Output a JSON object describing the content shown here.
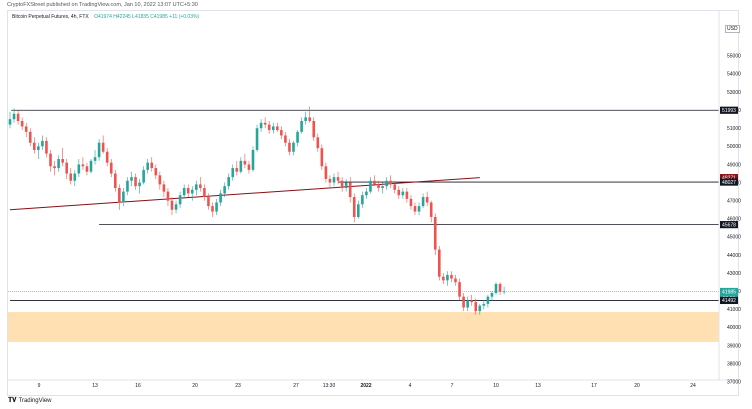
{
  "publisher": "CryptoFXStreet published on TradingView.com, Jan 10, 2022 13:07 UTC+5:30",
  "legend": {
    "symbol": "Bitcoin Perpetual Futures, 4h, FTX",
    "ohlc": "O41974 H42245 L41835 C41985 +11 (+0.03%)"
  },
  "currency": "USD",
  "footer_brand": "TradingView",
  "colors": {
    "up": "#26a69a",
    "down": "#ef5350",
    "ma_line": "#880e14",
    "line_black": "#131722",
    "zone_fill": "#ffe0b2"
  },
  "chart_data": {
    "type": "candlestick",
    "timeframe": "4h",
    "ylim": [
      36800,
      56700
    ],
    "yticks": [
      "55000",
      "54000",
      "53000",
      "52000",
      "51000",
      "50000",
      "49000",
      "48000",
      "47000",
      "46000",
      "45000",
      "44000",
      "43000",
      "42000",
      "41000",
      "40000",
      "39000",
      "38000",
      "37000"
    ],
    "xticks": [
      "9",
      "13",
      "16",
      "20",
      "23",
      "27",
      "13:30",
      "2022",
      "4",
      "7",
      "10",
      "13",
      "17",
      "20",
      "24"
    ],
    "price_tags": [
      {
        "label": "51993",
        "value": 51993,
        "color": "#131722"
      },
      {
        "label": "48271",
        "value": 48271,
        "color": "#880e14"
      },
      {
        "label": "48027",
        "value": 48027,
        "color": "#131722"
      },
      {
        "label": "45678",
        "value": 45678,
        "color": "#131722"
      },
      {
        "label": "41985",
        "value": 41985,
        "color": "#26a69a"
      },
      {
        "label": "22:53",
        "value": 41620,
        "color": "#26a69a"
      },
      {
        "label": "41492",
        "value": 41492,
        "color": "#131722"
      }
    ],
    "levels": [
      {
        "value": 51993,
        "start": 0.3
      },
      {
        "value": 48027,
        "start": 81
      },
      {
        "value": 45678,
        "start": 22
      },
      {
        "value": 41492,
        "start": 0
      }
    ],
    "zone": {
      "from": 39200,
      "to": 40850
    },
    "trend_line": {
      "x0": 0,
      "y0": 46500,
      "x1": 116,
      "y1": 48271
    },
    "price_line": 41985,
    "candles": [
      [
        51200,
        51900,
        51000,
        51500
      ],
      [
        51500,
        52100,
        51300,
        51800
      ],
      [
        51800,
        52000,
        51200,
        51400
      ],
      [
        51400,
        51600,
        50900,
        51100
      ],
      [
        51100,
        51300,
        50500,
        50800
      ],
      [
        50800,
        51000,
        50000,
        50200
      ],
      [
        50200,
        50500,
        49600,
        49800
      ],
      [
        49800,
        50200,
        49300,
        50000
      ],
      [
        50000,
        50600,
        49800,
        50300
      ],
      [
        50300,
        50500,
        49400,
        49600
      ],
      [
        49600,
        49800,
        48600,
        48900
      ],
      [
        48900,
        49200,
        48400,
        48800
      ],
      [
        48800,
        49500,
        48600,
        49300
      ],
      [
        49300,
        49900,
        48900,
        49100
      ],
      [
        49100,
        49300,
        48200,
        48500
      ],
      [
        48500,
        48800,
        47900,
        48100
      ],
      [
        48100,
        48700,
        47800,
        48500
      ],
      [
        48500,
        49300,
        48300,
        49000
      ],
      [
        49000,
        49400,
        48700,
        48900
      ],
      [
        48900,
        49100,
        48400,
        48600
      ],
      [
        48600,
        49300,
        48500,
        49200
      ],
      [
        49200,
        49800,
        49000,
        49400
      ],
      [
        49400,
        50400,
        49200,
        50200
      ],
      [
        50200,
        50600,
        49600,
        49700
      ],
      [
        49700,
        49900,
        48900,
        49100
      ],
      [
        49100,
        49300,
        48300,
        48500
      ],
      [
        48500,
        48700,
        47500,
        47700
      ],
      [
        47700,
        47900,
        46500,
        46900
      ],
      [
        46900,
        47700,
        46700,
        47500
      ],
      [
        47500,
        48300,
        47300,
        48100
      ],
      [
        48100,
        48600,
        47800,
        48300
      ],
      [
        48300,
        48500,
        47600,
        47800
      ],
      [
        47800,
        48200,
        47400,
        48000
      ],
      [
        48000,
        48900,
        47900,
        48700
      ],
      [
        48700,
        49300,
        48500,
        49100
      ],
      [
        49100,
        49400,
        48600,
        48800
      ],
      [
        48800,
        49000,
        48200,
        48400
      ],
      [
        48400,
        48600,
        47600,
        47900
      ],
      [
        47900,
        48100,
        47200,
        47500
      ],
      [
        47500,
        47700,
        46700,
        47000
      ],
      [
        47000,
        47200,
        46200,
        46500
      ],
      [
        46500,
        47000,
        46300,
        46800
      ],
      [
        46800,
        47500,
        46600,
        47300
      ],
      [
        47300,
        47900,
        47100,
        47700
      ],
      [
        47700,
        47900,
        47200,
        47400
      ],
      [
        47400,
        47800,
        47000,
        47600
      ],
      [
        47600,
        48100,
        47300,
        47900
      ],
      [
        47900,
        48300,
        47500,
        47700
      ],
      [
        47700,
        47900,
        47000,
        47200
      ],
      [
        47200,
        47400,
        46500,
        46700
      ],
      [
        46700,
        46900,
        46100,
        46400
      ],
      [
        46400,
        47100,
        46200,
        46900
      ],
      [
        46900,
        47600,
        46700,
        47400
      ],
      [
        47400,
        48000,
        47200,
        47800
      ],
      [
        47800,
        48500,
        47600,
        48300
      ],
      [
        48300,
        49000,
        48100,
        48800
      ],
      [
        48800,
        49200,
        48400,
        48600
      ],
      [
        48600,
        49400,
        48500,
        49200
      ],
      [
        49200,
        49600,
        48800,
        49000
      ],
      [
        49000,
        49200,
        48500,
        48700
      ],
      [
        48700,
        50000,
        48600,
        49800
      ],
      [
        49800,
        51200,
        49700,
        51000
      ],
      [
        51000,
        51500,
        50800,
        51300
      ],
      [
        51300,
        51600,
        51000,
        51200
      ],
      [
        51200,
        51400,
        50700,
        50900
      ],
      [
        50900,
        51300,
        50700,
        51100
      ],
      [
        51100,
        51300,
        50800,
        50900
      ],
      [
        50900,
        51100,
        50400,
        50600
      ],
      [
        50600,
        50800,
        50000,
        50200
      ],
      [
        50200,
        50400,
        49500,
        49700
      ],
      [
        49700,
        50300,
        49500,
        50200
      ],
      [
        50200,
        50900,
        50000,
        50800
      ],
      [
        50800,
        51600,
        50700,
        51400
      ],
      [
        51400,
        51900,
        51200,
        51600
      ],
      [
        51600,
        52200,
        51300,
        51400
      ],
      [
        51400,
        51600,
        50300,
        50500
      ],
      [
        50500,
        50700,
        49700,
        49900
      ],
      [
        49900,
        50100,
        48700,
        48900
      ],
      [
        48900,
        49100,
        48000,
        48200
      ],
      [
        48200,
        48400,
        47700,
        48000
      ],
      [
        48000,
        48500,
        47800,
        48300
      ],
      [
        48300,
        48600,
        47900,
        48100
      ],
      [
        48100,
        48300,
        47500,
        47700
      ],
      [
        47700,
        48200,
        47500,
        48000
      ],
      [
        48000,
        48300,
        46900,
        47200
      ],
      [
        47200,
        47400,
        45800,
        46100
      ],
      [
        46100,
        47000,
        46000,
        46800
      ],
      [
        46800,
        47500,
        46600,
        47300
      ],
      [
        47300,
        47700,
        47100,
        47500
      ],
      [
        47500,
        48300,
        47400,
        48100
      ],
      [
        48100,
        48400,
        47800,
        47900
      ],
      [
        47900,
        48100,
        47500,
        47700
      ],
      [
        47700,
        48000,
        47400,
        47800
      ],
      [
        47800,
        48300,
        47600,
        48100
      ],
      [
        48100,
        48400,
        47700,
        47900
      ],
      [
        47900,
        48100,
        47400,
        47600
      ],
      [
        47600,
        47800,
        47100,
        47300
      ],
      [
        47300,
        47700,
        47100,
        47500
      ],
      [
        47500,
        47700,
        46900,
        47100
      ],
      [
        47100,
        47300,
        46500,
        46700
      ],
      [
        46700,
        46900,
        46200,
        46400
      ],
      [
        46400,
        46900,
        46200,
        46700
      ],
      [
        46700,
        47400,
        46600,
        47200
      ],
      [
        47200,
        47500,
        46700,
        46900
      ],
      [
        46900,
        47000,
        45800,
        46100
      ],
      [
        46100,
        46300,
        44000,
        44300
      ],
      [
        44300,
        44500,
        42600,
        42800
      ],
      [
        42800,
        43000,
        42400,
        42600
      ],
      [
        42600,
        43100,
        42300,
        42900
      ],
      [
        42900,
        43100,
        42500,
        42700
      ],
      [
        42700,
        42900,
        42300,
        42500
      ],
      [
        42500,
        42700,
        41500,
        41700
      ],
      [
        41700,
        41900,
        40900,
        41100
      ],
      [
        41100,
        41700,
        40900,
        41500
      ],
      [
        41500,
        41800,
        41200,
        41400
      ],
      [
        41400,
        41600,
        40700,
        40900
      ],
      [
        40900,
        41300,
        40700,
        41200
      ],
      [
        41200,
        41500,
        41000,
        41300
      ],
      [
        41300,
        41800,
        41100,
        41700
      ],
      [
        41700,
        42000,
        41500,
        41900
      ],
      [
        41900,
        42500,
        41800,
        42400
      ],
      [
        42400,
        42500,
        41800,
        41974
      ],
      [
        41974,
        42245,
        41835,
        41985
      ]
    ]
  }
}
